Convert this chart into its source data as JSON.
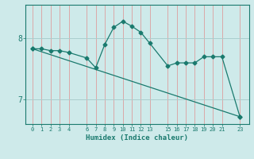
{
  "xlabel": "Humidex (Indice chaleur)",
  "background_color": "#ceeaea",
  "line_color": "#1a7a6e",
  "grid_color_v": "#dba8a8",
  "grid_color_h": "#aacece",
  "x_ticks": [
    0,
    1,
    2,
    3,
    4,
    6,
    7,
    8,
    9,
    10,
    11,
    12,
    13,
    15,
    16,
    17,
    18,
    19,
    20,
    21,
    23
  ],
  "line1_x": [
    0,
    1,
    2,
    3,
    4,
    6,
    7,
    8,
    9,
    10,
    11,
    12,
    13,
    15,
    16,
    17,
    18,
    19,
    20,
    21,
    23
  ],
  "line1_y": [
    7.83,
    7.83,
    7.8,
    7.8,
    7.77,
    7.68,
    7.52,
    7.9,
    8.18,
    8.28,
    8.2,
    8.1,
    7.92,
    7.55,
    7.6,
    7.6,
    7.6,
    7.7,
    7.7,
    7.7,
    6.72
  ],
  "line2_x": [
    0,
    23
  ],
  "line2_y": [
    7.83,
    6.72
  ],
  "ylim": [
    6.6,
    8.55
  ],
  "yticks": [
    7.0,
    8.0
  ],
  "ytick_labels": [
    "7",
    "8"
  ],
  "figsize": [
    3.2,
    2.0
  ],
  "dpi": 100
}
